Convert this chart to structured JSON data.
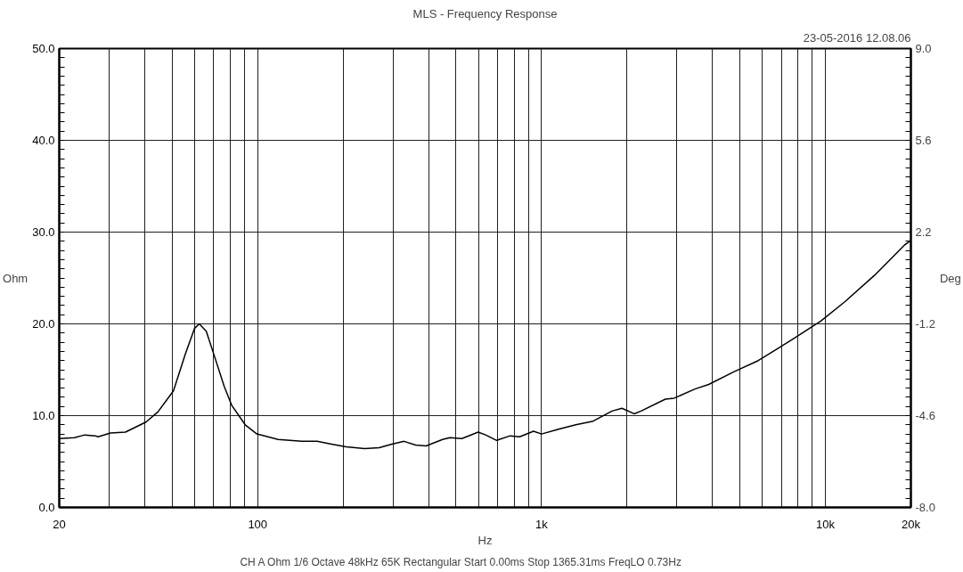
{
  "chart_data": {
    "type": "line",
    "title": "MLS - Frequency Response",
    "ylabel": "Ohm",
    "y2label": "Deg",
    "xlabel": "Hz",
    "annotations": [
      "23-05-2016 12.08.06",
      "CH A   Ohm   1/6 Octave   48kHz   65K   Rectangular   Start 0.00ms   Stop 1365.31ms   FreqLO 0.73Hz"
    ],
    "log": "x",
    "grid": true,
    "marker": "none",
    "line_style": "solid",
    "xlim": [
      20,
      20000
    ],
    "ylim": [
      0,
      50
    ],
    "y2lim": [
      -8.0,
      9.0
    ],
    "xticks": [
      20,
      {
        "value": 30,
        "label": null
      },
      {
        "value": 40,
        "label": null
      },
      {
        "value": 50,
        "label": null
      },
      {
        "value": 60,
        "label": null
      },
      {
        "value": 70,
        "label": null
      },
      {
        "value": 80,
        "label": null
      },
      {
        "value": 90,
        "label": null
      },
      100,
      {
        "value": 200,
        "label": null
      },
      {
        "value": 300,
        "label": null
      },
      {
        "value": 400,
        "label": null
      },
      {
        "value": 500,
        "label": null
      },
      {
        "value": 600,
        "label": null
      },
      {
        "value": 700,
        "label": null
      },
      {
        "value": 800,
        "label": null
      },
      {
        "value": 900,
        "label": null
      },
      {
        "value": 1000,
        "label": "1k"
      },
      {
        "value": 2000,
        "label": null
      },
      {
        "value": 3000,
        "label": null
      },
      {
        "value": 4000,
        "label": null
      },
      {
        "value": 5000,
        "label": null
      },
      {
        "value": 6000,
        "label": null
      },
      {
        "value": 7000,
        "label": null
      },
      {
        "value": 8000,
        "label": null
      },
      {
        "value": 9000,
        "label": null
      },
      {
        "value": 10000,
        "label": "10k"
      },
      {
        "value": 20000,
        "label": "20k"
      }
    ],
    "yticks": [
      {
        "value": 0,
        "label": "0.0"
      },
      {
        "value": 10,
        "label": "10.0"
      },
      {
        "value": 20,
        "label": "20.0"
      },
      {
        "value": 30,
        "label": "30.0"
      },
      {
        "value": 40,
        "label": "40.0"
      },
      {
        "value": 50,
        "label": "50.0"
      }
    ],
    "y2ticks": [
      {
        "value": -8.0,
        "label": "-8.0"
      },
      -4.6,
      -1.2,
      2.2,
      5.6,
      {
        "value": 9.0,
        "label": "9.0"
      }
    ],
    "series": [
      {
        "color": "#000000",
        "x": [
          20,
          22.6,
          24.6,
          26.8,
          27.4,
          30.3,
          34.2,
          40.4,
          44.5,
          50.5,
          55.6,
          59.9,
          62.3,
          65.9,
          70.9,
          76.2,
          81.1,
          90.4,
          99.4,
          118,
          143,
          162,
          182,
          205,
          238,
          268,
          297,
          328,
          360,
          392,
          448,
          475,
          524,
          598,
          635,
          695,
          775,
          837,
          937,
          1000,
          1140,
          1320,
          1520,
          1770,
          1920,
          2120,
          2240,
          2730,
          2930,
          3470,
          3880,
          4770,
          5800,
          6700,
          7740,
          9630,
          11700,
          14900,
          19000,
          20000
        ],
        "values": [
          7.5,
          7.6,
          7.9,
          7.8,
          7.7,
          8.1,
          8.2,
          9.3,
          10.4,
          12.7,
          16.7,
          19.5,
          20.0,
          19.2,
          16.2,
          13.2,
          11.1,
          9.0,
          8.0,
          7.4,
          7.2,
          7.2,
          6.9,
          6.6,
          6.4,
          6.5,
          6.9,
          7.2,
          6.8,
          6.7,
          7.4,
          7.6,
          7.5,
          8.2,
          7.9,
          7.3,
          7.8,
          7.7,
          8.3,
          8.0,
          8.5,
          9.0,
          9.4,
          10.5,
          10.8,
          10.2,
          10.5,
          11.8,
          11.9,
          12.9,
          13.4,
          14.8,
          16.0,
          17.2,
          18.4,
          20.3,
          22.4,
          25.3,
          28.6,
          29.1
        ]
      }
    ]
  }
}
